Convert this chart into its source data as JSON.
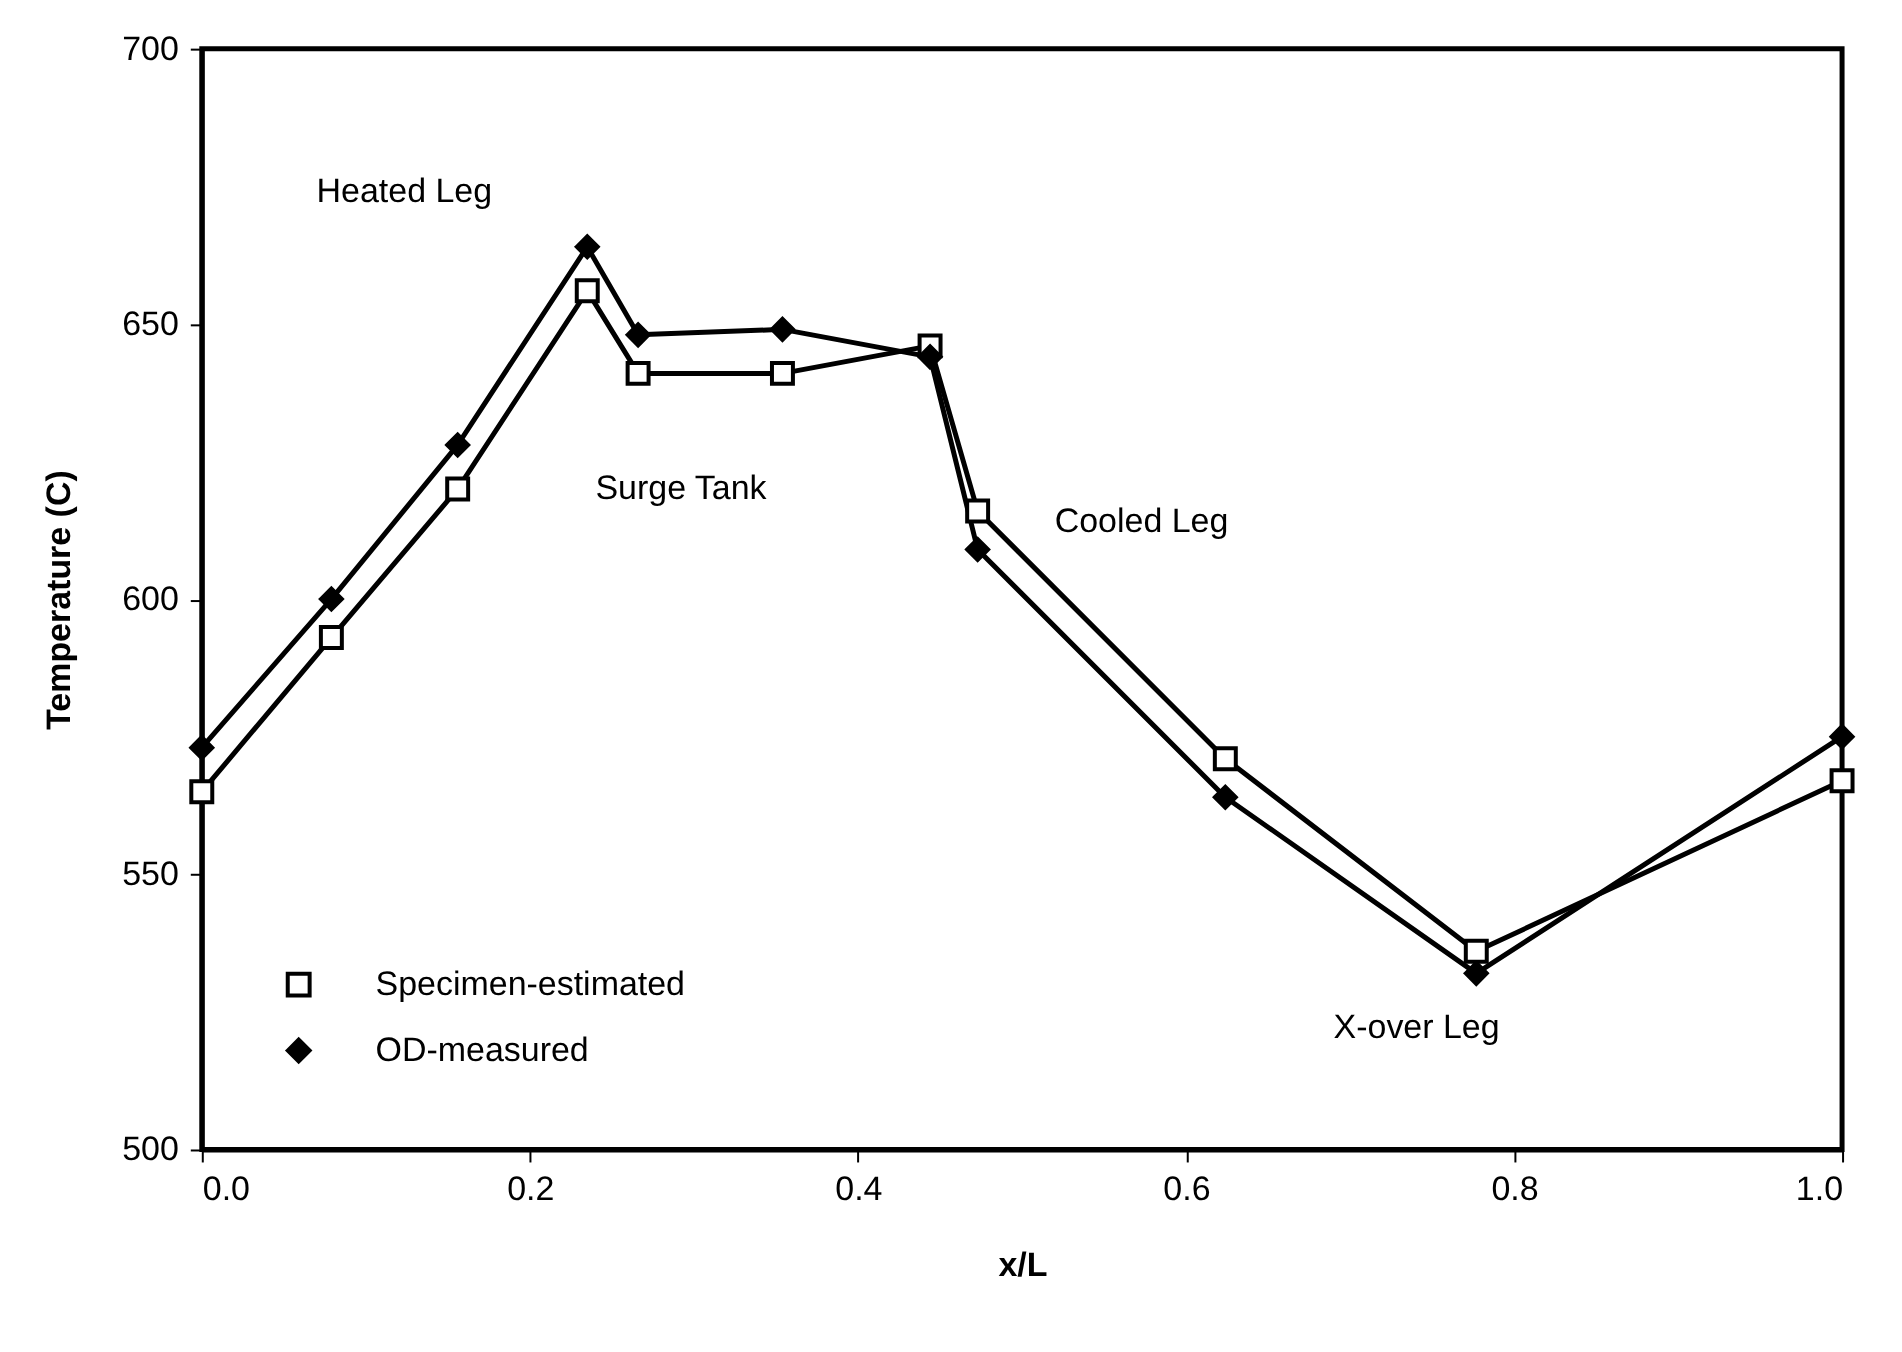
{
  "chart_data": {
    "type": "line",
    "xlabel": "x/L",
    "ylabel": "Temperature    (C)",
    "x": [
      0,
      0.079,
      0.156,
      0.235,
      0.266,
      0.354,
      0.444,
      0.473,
      0.624,
      0.777,
      1.0
    ],
    "series": [
      {
        "name": "Specimen-estimated",
        "color": "#000000",
        "marker": "square",
        "values": [
          565,
          593,
          620,
          656,
          641,
          641,
          646,
          616,
          571,
          536,
          567
        ]
      },
      {
        "name": "OD-measured",
        "color": "#000000",
        "marker": "diamond",
        "values": [
          573,
          600,
          628,
          664,
          648,
          649,
          644,
          609,
          564,
          532,
          575
        ]
      }
    ],
    "xlim": [
      0,
      1.0
    ],
    "ylim": [
      500,
      700
    ],
    "xticks": [
      "0.0",
      0.2,
      0.4,
      0.6,
      0.8,
      "1.0"
    ],
    "yticks": [
      500,
      550,
      600,
      650,
      700
    ],
    "annotations": [
      "Heated Leg",
      "Surge Tank",
      "Cooled Leg",
      "X-over Leg"
    ],
    "legend": "bottom left",
    "grid": false,
    "line_style": "solid"
  }
}
